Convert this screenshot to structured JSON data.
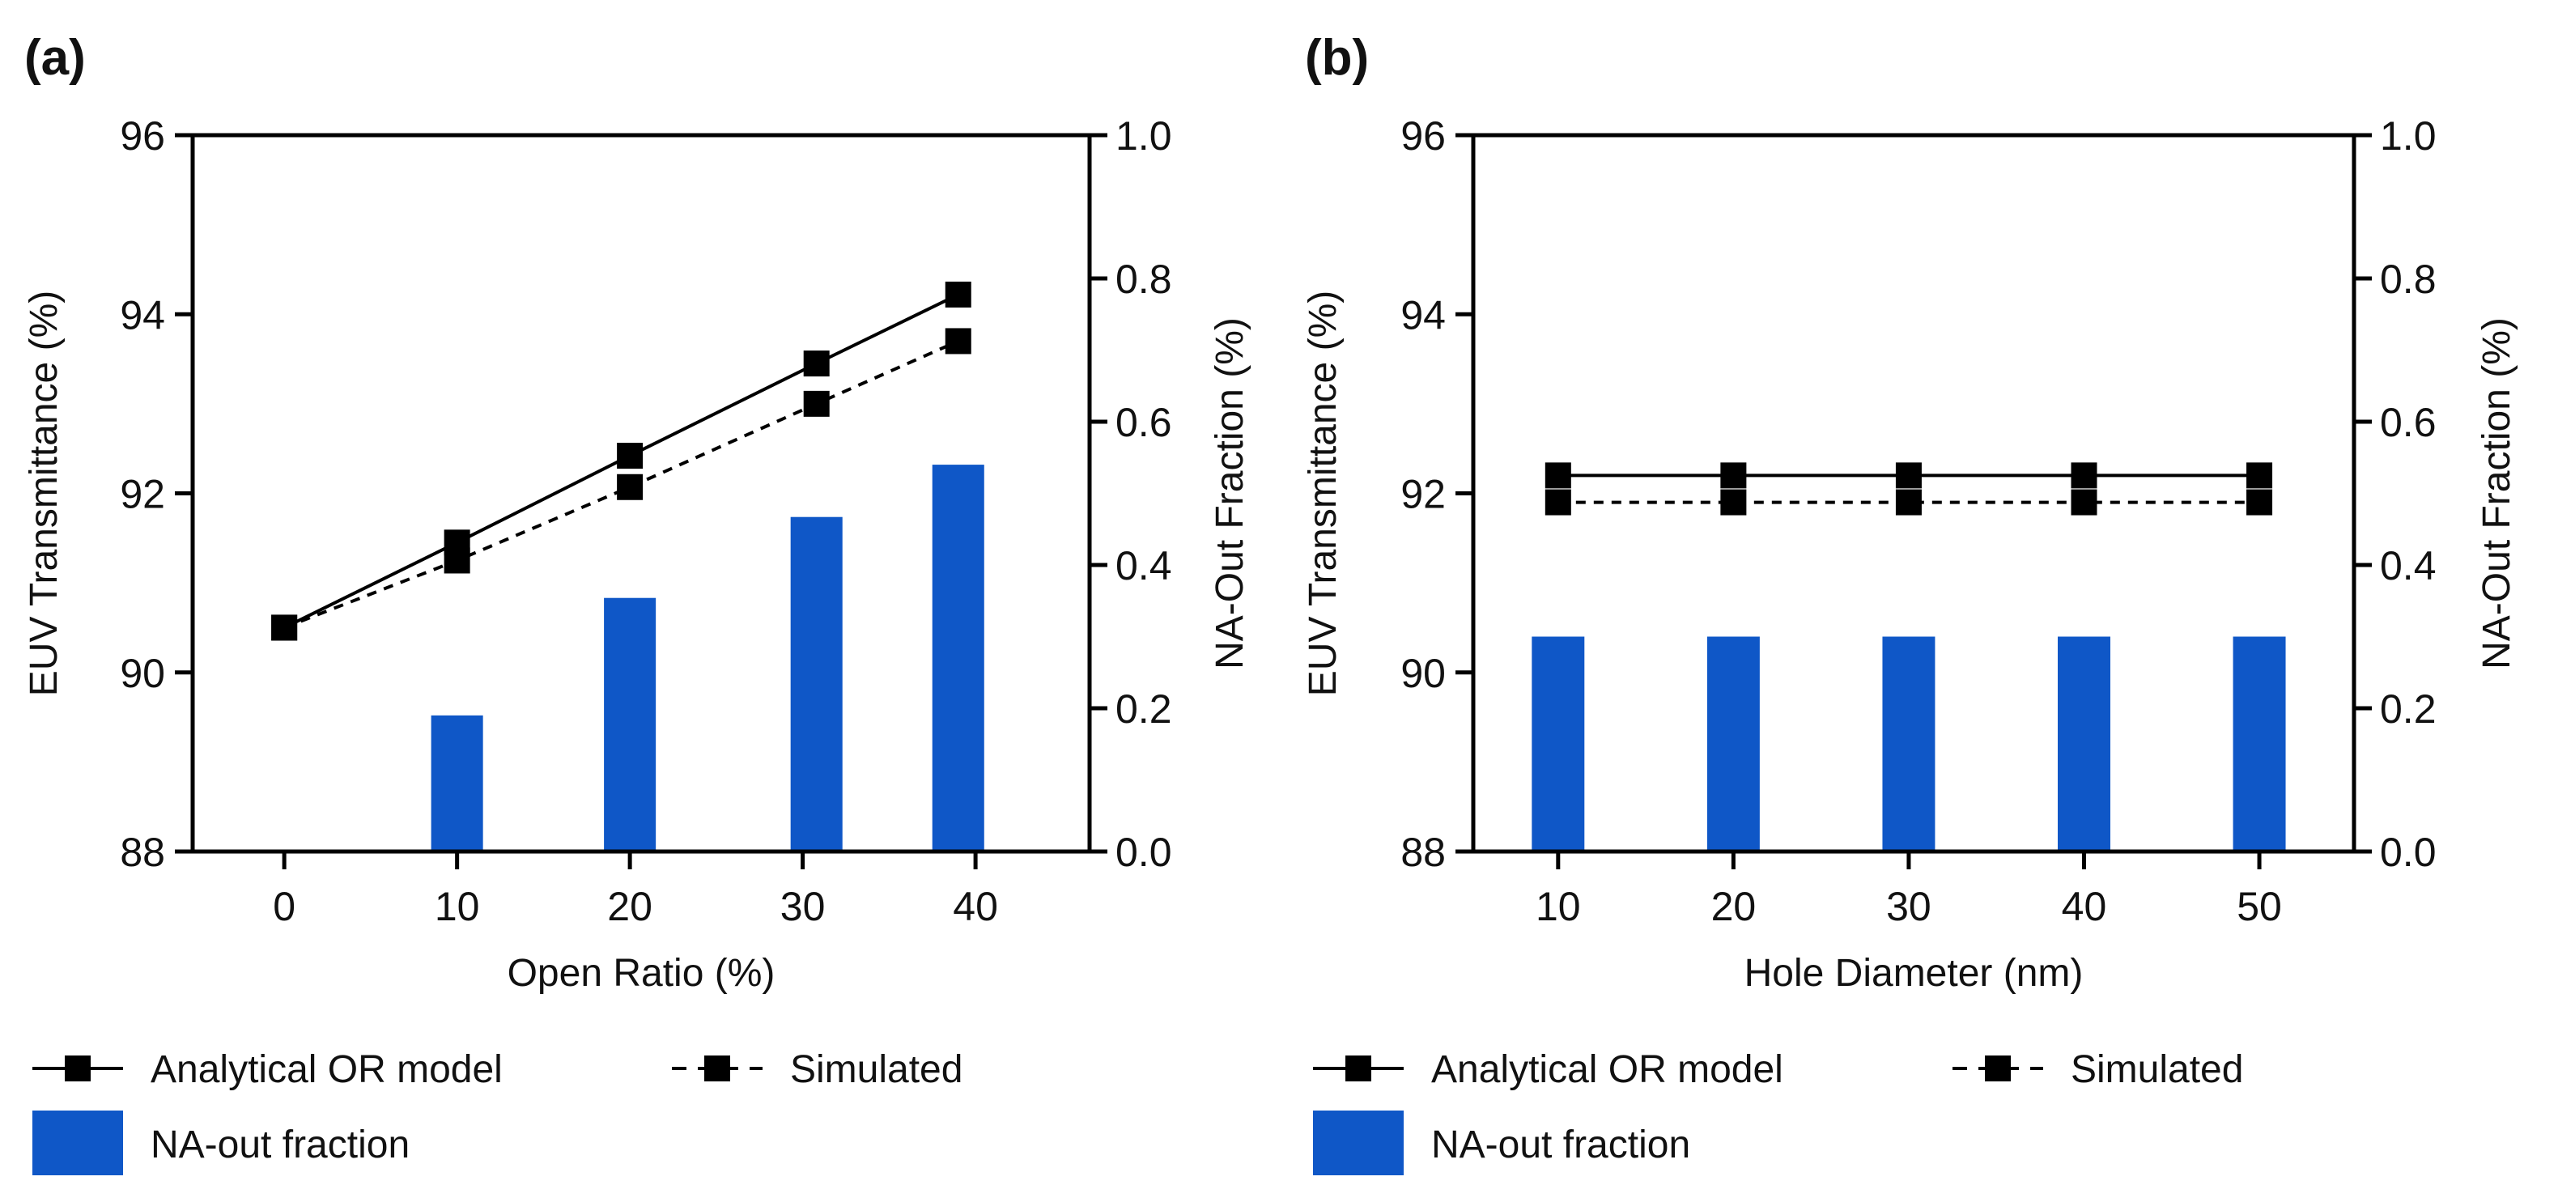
{
  "colors": {
    "bar": "#0f57c7",
    "line": "#000000"
  },
  "chart_data": [
    {
      "panel_label": "(a)",
      "type": "bar+line",
      "xlabel": "Open Ratio (%)",
      "ylabel": "EUV Transmittance (%)",
      "y2label": "NA-Out Fraction (%)",
      "xlim": [
        -5.3,
        46.6
      ],
      "ylim": [
        88,
        96
      ],
      "y2lim": [
        0,
        1.0
      ],
      "xticks": [
        0,
        10,
        20,
        30,
        40
      ],
      "xtick_labels": [
        "0",
        "10",
        "20",
        "30",
        "40"
      ],
      "yticks": [
        "88",
        "90",
        "92",
        "94",
        "96"
      ],
      "y2ticks": [
        "0.0",
        "0.2",
        "0.4",
        "0.6",
        "0.8",
        "1.0"
      ],
      "series": [
        {
          "name": "Analytical OR model",
          "style": "solid",
          "x": [
            0,
            10,
            20,
            30.8,
            39
          ],
          "values": [
            90.5,
            91.45,
            92.42,
            93.45,
            94.22
          ]
        },
        {
          "name": "Simulated",
          "style": "dashed",
          "x": [
            0,
            10,
            20,
            30.8,
            39
          ],
          "values": [
            90.5,
            91.25,
            92.07,
            93.0,
            93.7
          ]
        }
      ],
      "bars": {
        "name": "NA-out fraction",
        "axis": "right",
        "x": [
          10,
          20,
          30.8,
          39
        ],
        "values": [
          0.19,
          0.354,
          0.467,
          0.54
        ]
      },
      "legend": {
        "placement": "bottom",
        "labels": [
          "Analytical OR model",
          "Simulated",
          "NA-out fraction"
        ]
      }
    },
    {
      "panel_label": "(b)",
      "type": "bar+line",
      "xlabel": "Hole Diameter (nm)",
      "ylabel": "EUV Transmittance (%)",
      "y2label": "NA-Out Fraction (%)",
      "xlim": [
        5.16,
        55.4
      ],
      "ylim": [
        88,
        96
      ],
      "y2lim": [
        0,
        1.0
      ],
      "xticks": [
        10,
        20,
        30,
        40,
        50
      ],
      "xtick_labels": [
        "10",
        "20",
        "30",
        "40",
        "50"
      ],
      "yticks": [
        "88",
        "90",
        "92",
        "94",
        "96"
      ],
      "y2ticks": [
        "0.0",
        "0.2",
        "0.4",
        "0.6",
        "0.8",
        "1.0"
      ],
      "series": [
        {
          "name": "Analytical OR model",
          "style": "solid",
          "x": [
            10,
            20,
            30,
            40,
            50
          ],
          "values": [
            92.2,
            92.2,
            92.2,
            92.2,
            92.2
          ]
        },
        {
          "name": "Simulated",
          "style": "dashed",
          "x": [
            10,
            20,
            30,
            40,
            50
          ],
          "values": [
            91.9,
            91.9,
            91.9,
            91.9,
            91.9
          ]
        }
      ],
      "bars": {
        "name": "NA-out fraction",
        "axis": "right",
        "x": [
          10,
          20,
          30,
          40,
          50
        ],
        "values": [
          0.3,
          0.3,
          0.3,
          0.3,
          0.3
        ]
      },
      "legend": {
        "placement": "bottom",
        "labels": [
          "Analytical OR model",
          "Simulated",
          "NA-out fraction"
        ]
      }
    }
  ]
}
